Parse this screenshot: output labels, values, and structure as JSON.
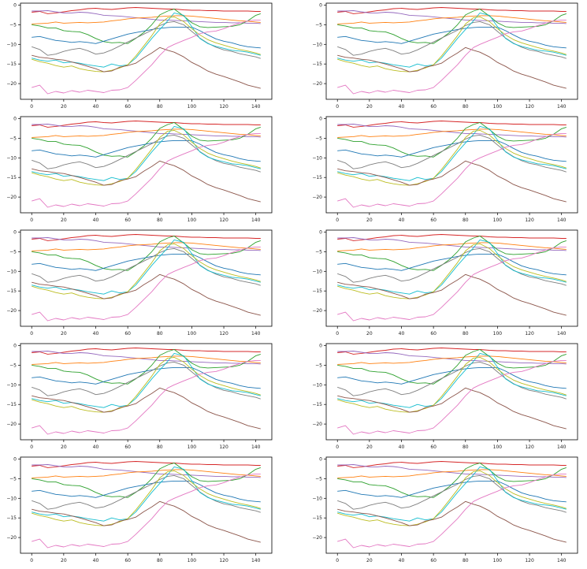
{
  "figure": {
    "rows": 5,
    "cols": 2
  },
  "colors": {
    "C0": "#1f77b4",
    "C1": "#ff7f0e",
    "C2": "#2ca02c",
    "C3": "#d62728",
    "C4": "#9467bd",
    "C5": "#8c564b",
    "C6": "#e377c2",
    "C7": "#7f7f7f",
    "C8": "#bcbd22",
    "C9": "#17becf"
  },
  "chart_template": {
    "type": "line",
    "xlim": [
      -7,
      150
    ],
    "ylim": [
      -24,
      0.5
    ],
    "xticks": [
      0,
      20,
      40,
      60,
      80,
      100,
      120,
      140
    ],
    "yticks": [
      0,
      -5,
      -10,
      -15,
      -20
    ],
    "grid": false,
    "x": [
      0,
      5,
      10,
      15,
      20,
      25,
      30,
      35,
      40,
      45,
      50,
      55,
      60,
      65,
      70,
      75,
      80,
      85,
      89,
      95,
      100,
      105,
      110,
      115,
      120,
      125,
      130,
      135,
      140,
      143
    ],
    "series": [
      {
        "color": "#d62728",
        "values": [
          -1.8,
          -1.6,
          -2.2,
          -2.0,
          -1.7,
          -1.4,
          -1.2,
          -0.9,
          -0.8,
          -1.0,
          -1.1,
          -0.9,
          -0.7,
          -0.6,
          -0.7,
          -0.8,
          -0.9,
          -1.0,
          -1.0,
          -1.2,
          -1.3,
          -1.3,
          -1.4,
          -1.4,
          -1.5,
          -1.5,
          -1.5,
          -1.5,
          -1.6,
          -1.6
        ]
      },
      {
        "color": "#9467bd",
        "values": [
          -1.5,
          -1.5,
          -1.4,
          -1.7,
          -2.0,
          -2.0,
          -1.8,
          -1.9,
          -2.2,
          -2.6,
          -2.7,
          -2.8,
          -3.0,
          -3.2,
          -3.4,
          -3.6,
          -3.8,
          -3.8,
          -3.9,
          -4.0,
          -4.1,
          -4.2,
          -4.3,
          -4.4,
          -4.4,
          -4.5,
          -4.5,
          -4.6,
          -4.6,
          -4.7
        ]
      },
      {
        "color": "#ff7f0e",
        "values": [
          -4.8,
          -4.7,
          -4.6,
          -4.3,
          -4.6,
          -4.5,
          -4.4,
          -4.5,
          -4.4,
          -4.3,
          -4.0,
          -3.8,
          -3.5,
          -3.3,
          -3.2,
          -3.1,
          -2.9,
          -2.8,
          -2.7,
          -2.7,
          -2.8,
          -3.0,
          -3.2,
          -3.4,
          -3.6,
          -3.8,
          -4.0,
          -4.1,
          -4.3,
          -4.4
        ]
      },
      {
        "color": "#2ca02c",
        "values": [
          -5.0,
          -5.3,
          -5.8,
          -5.8,
          -6.5,
          -6.7,
          -6.8,
          -7.5,
          -8.5,
          -9.3,
          -9.6,
          -9.5,
          -9.8,
          -8.5,
          -7.0,
          -5.0,
          -2.5,
          -1.5,
          -1.0,
          -2.8,
          -4.5,
          -5.5,
          -5.7,
          -5.6,
          -5.5,
          -5.4,
          -5.0,
          -4.0,
          -2.6,
          -2.2
        ]
      },
      {
        "color": "#1f77b4",
        "values": [
          -8.2,
          -8.0,
          -8.5,
          -9.0,
          -9.2,
          -9.5,
          -9.3,
          -9.5,
          -9.8,
          -9.2,
          -8.6,
          -8.0,
          -7.4,
          -7.0,
          -6.6,
          -6.2,
          -5.9,
          -5.7,
          -5.6,
          -5.6,
          -5.6,
          -6.5,
          -7.6,
          -8.6,
          -9.2,
          -9.6,
          -10.2,
          -10.6,
          -10.8,
          -10.9
        ]
      },
      {
        "color": "#7f7f7f",
        "values": [
          -10.6,
          -11.3,
          -12.8,
          -12.5,
          -11.8,
          -11.3,
          -11.0,
          -11.6,
          -12.5,
          -12.2,
          -11.4,
          -10.4,
          -9.4,
          -8.4,
          -7.4,
          -6.4,
          -5.2,
          -4.4,
          -4.2,
          -5.0,
          -6.7,
          -8.4,
          -9.7,
          -10.7,
          -11.4,
          -11.8,
          -12.4,
          -12.8,
          -13.2,
          -13.6
        ]
      },
      {
        "color": "#17becf",
        "values": [
          -13.5,
          -14.0,
          -14.3,
          -14.0,
          -14.7,
          -14.5,
          -14.8,
          -15.2,
          -15.5,
          -15.8,
          -15.0,
          -15.5,
          -15.2,
          -13.5,
          -11.0,
          -8.5,
          -6.2,
          -4.0,
          -2.0,
          -2.6,
          -5.5,
          -8.5,
          -9.8,
          -10.5,
          -11.0,
          -11.5,
          -11.7,
          -12.0,
          -12.5,
          -12.8
        ]
      },
      {
        "color": "#bcbd22",
        "values": [
          -13.8,
          -14.4,
          -14.8,
          -15.4,
          -15.8,
          -15.5,
          -16.2,
          -16.6,
          -16.9,
          -17.0,
          -16.6,
          -16.0,
          -15.2,
          -13.0,
          -10.4,
          -7.8,
          -4.8,
          -3.2,
          -3.0,
          -4.2,
          -6.0,
          -7.6,
          -8.8,
          -9.6,
          -10.2,
          -10.8,
          -11.3,
          -11.7,
          -12.2,
          -12.6
        ]
      },
      {
        "color": "#8c564b",
        "values": [
          -12.8,
          -13.3,
          -13.5,
          -13.8,
          -14.0,
          -14.5,
          -15.0,
          -15.6,
          -16.2,
          -17.0,
          -16.8,
          -15.8,
          -15.4,
          -14.8,
          -13.4,
          -12.2,
          -10.8,
          -11.5,
          -12.0,
          -13.2,
          -14.6,
          -15.6,
          -16.8,
          -17.6,
          -18.2,
          -18.9,
          -19.6,
          -20.4,
          -20.9,
          -21.2
        ]
      },
      {
        "color": "#e377c2",
        "values": [
          -21.0,
          -20.4,
          -22.6,
          -22.0,
          -22.4,
          -21.8,
          -22.2,
          -21.7,
          -22.0,
          -22.3,
          -21.7,
          -21.6,
          -21.0,
          -19.2,
          -17.2,
          -15.2,
          -12.8,
          -10.8,
          -10.0,
          -9.0,
          -8.2,
          -7.3,
          -6.8,
          -6.6,
          -6.0,
          -5.2,
          -4.6,
          -4.0,
          -3.8,
          -3.8
        ]
      }
    ]
  }
}
